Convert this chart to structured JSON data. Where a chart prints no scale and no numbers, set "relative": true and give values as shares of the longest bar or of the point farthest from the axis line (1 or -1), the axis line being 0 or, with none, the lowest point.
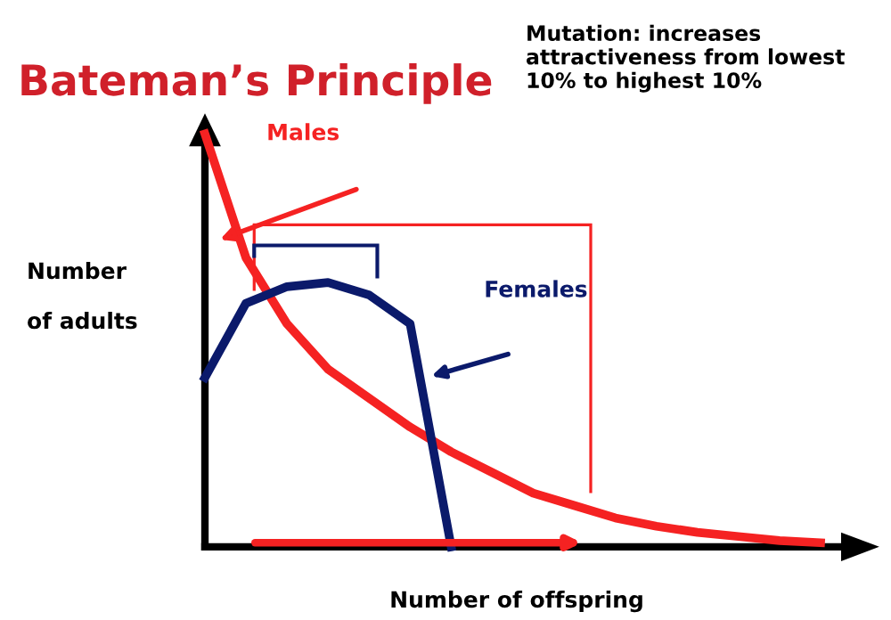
{
  "chart_data": {
    "type": "line",
    "relative": true,
    "title": "Bateman’s Principle",
    "xlabel": "Number of offspring",
    "ylabel": "Number\n\nof adults",
    "annotations": [
      "Mutation: increases attractiveness from lowest 10% to highest 10%"
    ],
    "categories": [
      null,
      null,
      null,
      null,
      null,
      null,
      null,
      null,
      null,
      null,
      null,
      null,
      null,
      null,
      null,
      null
    ],
    "series": [
      {
        "name": "Males",
        "color": "#f52222",
        "values": [
          1,
          0.7,
          0.54,
          0.43,
          0.36,
          0.29,
          0.23,
          0.18,
          0.13,
          0.1,
          0.07,
          0.05,
          0.035,
          0.025,
          0.015,
          0.01
        ]
      },
      {
        "name": "Females",
        "color": "#0b1a6b",
        "values": [
          0.41,
          0.59,
          0.63,
          0.64,
          0.61,
          0.54,
          0,
          null,
          null,
          null,
          null,
          null,
          null,
          null,
          null,
          null
        ]
      }
    ],
    "grid": false,
    "legend": false,
    "marker": "none",
    "line_style": "solid"
  }
}
